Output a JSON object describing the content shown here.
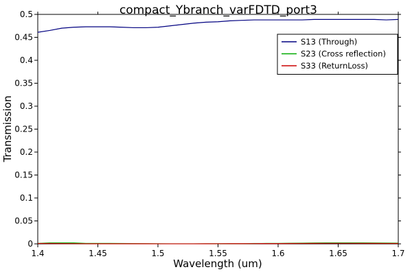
{
  "chart_data": {
    "type": "line",
    "title": "compact_Ybranch_varFDTD_port3",
    "xlabel": "Wavelength (um)",
    "ylabel": "Transmission",
    "xlim": [
      1.4,
      1.7
    ],
    "ylim": [
      0,
      0.5
    ],
    "x_ticks": [
      "1.4",
      "1.45",
      "1.5",
      "1.55",
      "1.6",
      "1.65",
      "1.7"
    ],
    "y_ticks": [
      "0",
      "0.05",
      "0.1",
      "0.15",
      "0.2",
      "0.25",
      "0.3",
      "0.35",
      "0.4",
      "0.45",
      "0.5"
    ],
    "grid": false,
    "legend_position": "top-right",
    "series": [
      {
        "name": "S13 (Through)",
        "color": "#000080",
        "x": [
          1.4,
          1.41,
          1.42,
          1.43,
          1.44,
          1.45,
          1.46,
          1.47,
          1.48,
          1.49,
          1.5,
          1.51,
          1.52,
          1.53,
          1.54,
          1.55,
          1.56,
          1.57,
          1.58,
          1.59,
          1.6,
          1.61,
          1.62,
          1.63,
          1.64,
          1.65,
          1.66,
          1.67,
          1.68,
          1.69,
          1.7
        ],
        "values": [
          0.461,
          0.465,
          0.47,
          0.472,
          0.473,
          0.473,
          0.473,
          0.472,
          0.471,
          0.471,
          0.472,
          0.475,
          0.478,
          0.481,
          0.483,
          0.484,
          0.486,
          0.487,
          0.488,
          0.488,
          0.488,
          0.488,
          0.488,
          0.489,
          0.489,
          0.489,
          0.489,
          0.489,
          0.489,
          0.488,
          0.489
        ]
      },
      {
        "name": "S23 (Cross reflection)",
        "color": "#00aa00",
        "x": [
          1.4,
          1.41,
          1.42,
          1.43,
          1.44,
          1.45,
          1.46,
          1.47,
          1.48,
          1.49,
          1.5,
          1.51,
          1.52,
          1.53,
          1.54,
          1.55,
          1.56,
          1.57,
          1.58,
          1.59,
          1.6,
          1.61,
          1.62,
          1.63,
          1.64,
          1.65,
          1.66,
          1.67,
          1.68,
          1.69,
          1.7
        ],
        "values": [
          0.001,
          0.002,
          0.002,
          0.002,
          0.001,
          0.001,
          0.001,
          0.0008,
          0.0006,
          0.0004,
          0.0002,
          0.0001,
          0.0001,
          0.0001,
          0.0002,
          0.0003,
          0.0004,
          0.0005,
          0.0007,
          0.0009,
          0.001,
          0.0013,
          0.0016,
          0.0019,
          0.002,
          0.002,
          0.002,
          0.002,
          0.0019,
          0.0017,
          0.0015
        ]
      },
      {
        "name": "S33 (ReturnLoss)",
        "color": "#cc0000",
        "x": [
          1.4,
          1.41,
          1.42,
          1.43,
          1.44,
          1.45,
          1.46,
          1.47,
          1.48,
          1.49,
          1.5,
          1.51,
          1.52,
          1.53,
          1.54,
          1.55,
          1.56,
          1.57,
          1.58,
          1.59,
          1.6,
          1.61,
          1.62,
          1.63,
          1.64,
          1.65,
          1.66,
          1.67,
          1.68,
          1.69,
          1.7
        ],
        "values": [
          0.0008,
          0.0007,
          0.0006,
          0.0005,
          0.0003,
          0.0002,
          0.0002,
          0.0002,
          0.0002,
          0.0002,
          0.0001,
          0.0001,
          0.0001,
          0.0001,
          0.0002,
          0.0003,
          0.0004,
          0.0004,
          0.0005,
          0.0006,
          0.0006,
          0.0007,
          0.0008,
          0.0009,
          0.001,
          0.001,
          0.001,
          0.0009,
          0.0009,
          0.0008,
          0.0008
        ]
      }
    ]
  }
}
